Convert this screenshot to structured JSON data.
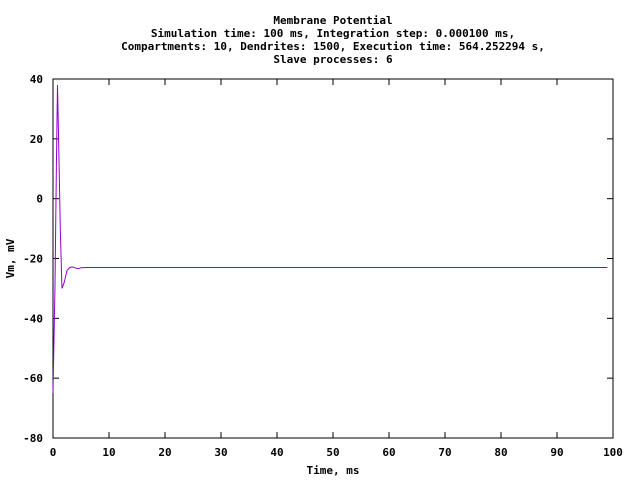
{
  "chart_data": {
    "type": "line",
    "title_lines": [
      "Membrane Potential",
      "Simulation time: 100 ms, Integration step: 0.000100 ms,",
      "Compartments: 10, Dendrites: 1500, Execution time: 564.252294 s,",
      "Slave processes: 6"
    ],
    "xlabel": "Time, ms",
    "ylabel": "Vm, mV",
    "xlim": [
      0,
      100
    ],
    "ylim": [
      -80,
      40
    ],
    "xticks": [
      "0",
      "10",
      "20",
      "30",
      "40",
      "50",
      "60",
      "70",
      "80",
      "90",
      "100"
    ],
    "yticks": [
      "-80",
      "-60",
      "-40",
      "-20",
      "0",
      "20",
      "40"
    ],
    "grid": false,
    "series": [
      {
        "color": "#9400d3",
        "x": [
          0,
          0.35,
          0.6,
          0.8,
          1.0,
          1.3,
          1.6,
          2.0,
          2.5,
          3.0,
          3.5,
          4.0,
          4.5,
          5.0,
          6.0,
          8.0,
          10.0,
          20,
          40,
          60,
          80,
          99
        ],
        "y": [
          -65,
          -30,
          10,
          38,
          20,
          -10,
          -30,
          -28,
          -24,
          -23,
          -22.8,
          -23.2,
          -23.4,
          -23.1,
          -23.0,
          -23.0,
          -23.0,
          -23.0,
          -23.0,
          -23.0,
          -23.0,
          -23.0
        ]
      }
    ]
  }
}
